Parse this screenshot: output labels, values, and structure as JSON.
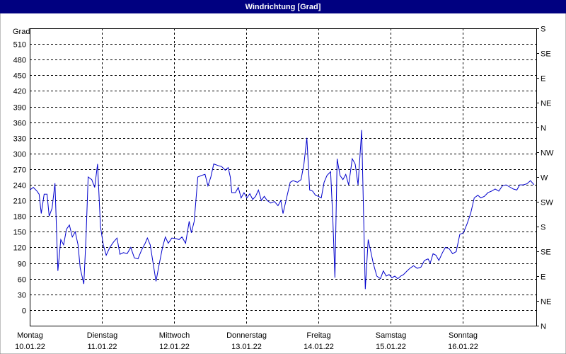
{
  "chart_data": {
    "type": "line",
    "title": "Windrichtung [Grad]",
    "ylabel": "Grad",
    "xlim": [
      0,
      7.02
    ],
    "ylim": [
      -30,
      540
    ],
    "xticks": [
      {
        "value": 0,
        "label": "Montag"
      },
      {
        "value": 1,
        "label": "Dienstag"
      },
      {
        "value": 2,
        "label": "Mittwoch"
      },
      {
        "value": 3,
        "label": "Donnerstag"
      },
      {
        "value": 4,
        "label": "Freitag"
      },
      {
        "value": 5,
        "label": "Samstag"
      },
      {
        "value": 6,
        "label": "Sonntag"
      }
    ],
    "xtick_dates": [
      "10.01.22",
      "11.01.22",
      "12.01.22",
      "13.01.22",
      "14.01.22",
      "15.01.22",
      "16.01.22"
    ],
    "yticks": [
      0,
      30,
      60,
      90,
      120,
      150,
      180,
      210,
      240,
      270,
      300,
      330,
      360,
      390,
      420,
      450,
      480,
      510
    ],
    "y2lim": [
      -30,
      540
    ],
    "y2ticks": [
      {
        "value": -30,
        "label": "N"
      },
      {
        "value": 17.5,
        "label": "NE"
      },
      {
        "value": 65,
        "label": "E"
      },
      {
        "value": 112.5,
        "label": "SE"
      },
      {
        "value": 160,
        "label": "S"
      },
      {
        "value": 207.5,
        "label": "SW"
      },
      {
        "value": 255,
        "label": "W"
      },
      {
        "value": 302.5,
        "label": "NW"
      },
      {
        "value": 350,
        "label": "N"
      },
      {
        "value": 397.5,
        "label": "NE"
      },
      {
        "value": 445,
        "label": "E"
      },
      {
        "value": 492.5,
        "label": "SE"
      },
      {
        "value": 540,
        "label": "S"
      }
    ],
    "grid": true,
    "color": "#0000cc",
    "x": [
      0,
      0.05,
      0.1,
      0.13,
      0.16,
      0.2,
      0.24,
      0.27,
      0.31,
      0.35,
      0.39,
      0.43,
      0.47,
      0.51,
      0.55,
      0.59,
      0.63,
      0.67,
      0.7,
      0.75,
      0.78,
      0.81,
      0.86,
      0.9,
      0.94,
      0.98,
      1.02,
      1.06,
      1.11,
      1.16,
      1.21,
      1.25,
      1.3,
      1.35,
      1.4,
      1.45,
      1.5,
      1.55,
      1.6,
      1.63,
      1.67,
      1.71,
      1.75,
      1.79,
      1.84,
      1.88,
      1.92,
      1.97,
      2.02,
      2.07,
      2.11,
      2.16,
      2.21,
      2.24,
      2.28,
      2.33,
      2.38,
      2.43,
      2.47,
      2.51,
      2.55,
      2.61,
      2.66,
      2.71,
      2.75,
      2.78,
      2.8,
      2.85,
      2.89,
      2.93,
      2.97,
      3.01,
      3.05,
      3.09,
      3.13,
      3.17,
      3.21,
      3.25,
      3.29,
      3.34,
      3.39,
      3.44,
      3.48,
      3.51,
      3.56,
      3.61,
      3.65,
      3.71,
      3.76,
      3.8,
      3.84,
      3.88,
      3.92,
      3.96,
      4.0,
      4.04,
      4.08,
      4.12,
      4.17,
      4.2,
      4.23,
      4.26,
      4.3,
      4.34,
      4.38,
      4.42,
      4.47,
      4.51,
      4.55,
      4.6,
      4.63,
      4.65,
      4.69,
      4.73,
      4.76,
      4.81,
      4.86,
      4.9,
      4.94,
      4.98,
      5.02,
      5.06,
      5.1,
      5.14,
      5.18,
      5.23,
      5.27,
      5.32,
      5.37,
      5.42,
      5.47,
      5.52,
      5.55,
      5.59,
      5.63,
      5.67,
      5.72,
      5.76,
      5.81,
      5.86,
      5.91,
      5.96,
      6.01,
      6.06,
      6.11,
      6.16,
      6.21,
      6.25,
      6.3,
      6.35,
      6.4,
      6.45,
      6.5,
      6.55,
      6.6,
      6.65,
      6.7,
      6.75,
      6.79,
      6.84,
      6.89,
      6.94,
      6.99
    ],
    "values": [
      230,
      235,
      228,
      222,
      185,
      222,
      222,
      180,
      195,
      243,
      75,
      135,
      125,
      155,
      163,
      140,
      150,
      125,
      80,
      50,
      140,
      255,
      250,
      235,
      280,
      160,
      125,
      105,
      120,
      130,
      138,
      107,
      110,
      108,
      120,
      100,
      98,
      115,
      128,
      138,
      125,
      90,
      55,
      85,
      120,
      140,
      128,
      138,
      137,
      135,
      140,
      128,
      170,
      148,
      170,
      255,
      258,
      260,
      238,
      255,
      280,
      277,
      275,
      268,
      273,
      255,
      225,
      225,
      235,
      215,
      225,
      215,
      223,
      212,
      218,
      230,
      210,
      218,
      210,
      205,
      208,
      200,
      210,
      185,
      215,
      245,
      248,
      245,
      250,
      280,
      330,
      230,
      228,
      220,
      218,
      215,
      245,
      258,
      265,
      175,
      62,
      290,
      258,
      250,
      260,
      240,
      290,
      280,
      240,
      345,
      165,
      40,
      135,
      110,
      90,
      65,
      60,
      75,
      65,
      68,
      62,
      65,
      60,
      65,
      68,
      75,
      80,
      85,
      80,
      82,
      95,
      98,
      90,
      108,
      105,
      95,
      110,
      120,
      118,
      108,
      112,
      145,
      148,
      165,
      185,
      215,
      220,
      215,
      218,
      225,
      228,
      232,
      228,
      238,
      240,
      236,
      232,
      230,
      240,
      240,
      242,
      248,
      240
    ]
  }
}
